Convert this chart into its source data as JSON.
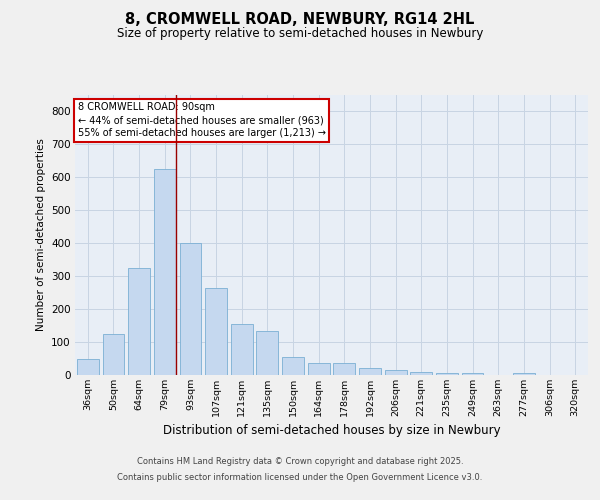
{
  "title_line1": "8, CROMWELL ROAD, NEWBURY, RG14 2HL",
  "title_line2": "Size of property relative to semi-detached houses in Newbury",
  "xlabel": "Distribution of semi-detached houses by size in Newbury",
  "ylabel": "Number of semi-detached properties",
  "categories": [
    "36sqm",
    "50sqm",
    "64sqm",
    "79sqm",
    "93sqm",
    "107sqm",
    "121sqm",
    "135sqm",
    "150sqm",
    "164sqm",
    "178sqm",
    "192sqm",
    "206sqm",
    "221sqm",
    "235sqm",
    "249sqm",
    "263sqm",
    "277sqm",
    "306sqm",
    "320sqm"
  ],
  "values": [
    50,
    125,
    325,
    625,
    400,
    265,
    155,
    135,
    55,
    35,
    35,
    20,
    15,
    10,
    5,
    5,
    0,
    5,
    0,
    0
  ],
  "bar_color": "#c5d8ef",
  "bar_edge_color": "#7bafd4",
  "grid_color": "#c8d4e3",
  "background_color": "#e8eef6",
  "fig_background_color": "#f0f0f0",
  "vline_color": "#990000",
  "vline_x_index": 3,
  "annotation_title": "8 CROMWELL ROAD: 90sqm",
  "annotation_line1": "← 44% of semi-detached houses are smaller (963)",
  "annotation_line2": "55% of semi-detached houses are larger (1,213) →",
  "annotation_box_facecolor": "#ffffff",
  "annotation_box_edgecolor": "#cc0000",
  "ylim": [
    0,
    850
  ],
  "yticks": [
    0,
    100,
    200,
    300,
    400,
    500,
    600,
    700,
    800
  ],
  "footer_line1": "Contains HM Land Registry data © Crown copyright and database right 2025.",
  "footer_line2": "Contains public sector information licensed under the Open Government Licence v3.0."
}
